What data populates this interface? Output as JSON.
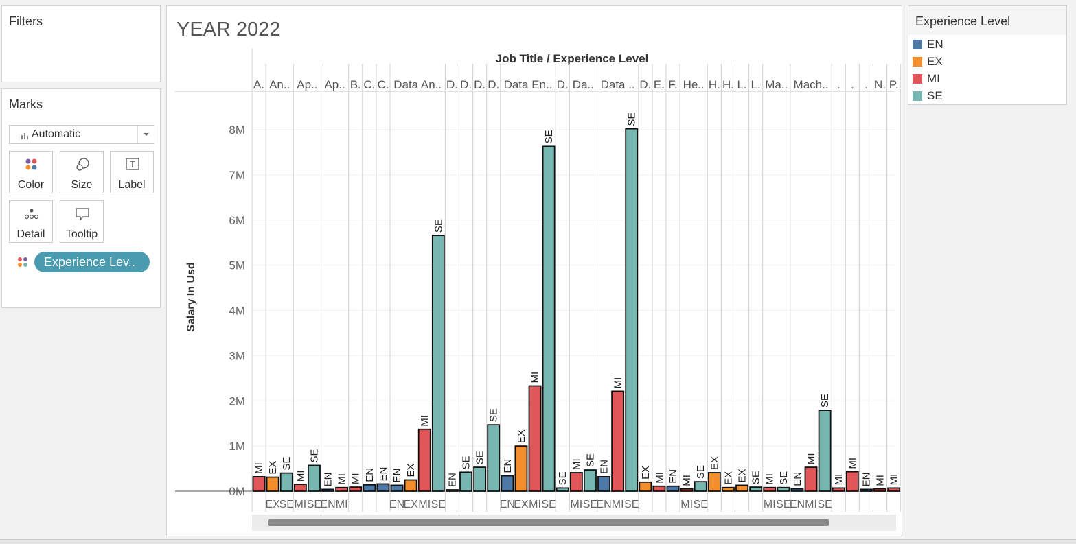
{
  "filters": {
    "title": "Filters"
  },
  "marks": {
    "title": "Marks",
    "mark_type": "Automatic",
    "buttons": {
      "color": "Color",
      "size": "Size",
      "label": "Label",
      "detail": "Detail",
      "tooltip": "Tooltip"
    },
    "pill": "Experience Lev.."
  },
  "legend": {
    "title": "Experience Level",
    "items": [
      {
        "label": "EN",
        "color": "#4e79a7"
      },
      {
        "label": "EX",
        "color": "#f28e2b"
      },
      {
        "label": "MI",
        "color": "#e15759"
      },
      {
        "label": "SE",
        "color": "#76b7b2"
      }
    ]
  },
  "chart_data": {
    "type": "bar",
    "title": "YEAR 2022",
    "header": "Job Title  /  Experience Level",
    "ylabel": "Salary In Usd",
    "ylim": [
      0,
      8800000
    ],
    "yticks": [
      {
        "v": 0,
        "label": "0M"
      },
      {
        "v": 1000000,
        "label": "1M"
      },
      {
        "v": 2000000,
        "label": "2M"
      },
      {
        "v": 3000000,
        "label": "3M"
      },
      {
        "v": 4000000,
        "label": "4M"
      },
      {
        "v": 5000000,
        "label": "5M"
      },
      {
        "v": 6000000,
        "label": "6M"
      },
      {
        "v": 7000000,
        "label": "7M"
      },
      {
        "v": 8000000,
        "label": "8M"
      }
    ],
    "colors": {
      "EN": "#4e79a7",
      "EX": "#f28e2b",
      "MI": "#e15759",
      "SE": "#76b7b2"
    },
    "groups": [
      {
        "title": "A.",
        "bars": [
          {
            "level": "MI",
            "value": 320000
          }
        ]
      },
      {
        "title": "An..",
        "bars": [
          {
            "level": "EX",
            "value": 310000
          },
          {
            "level": "SE",
            "value": 400000
          }
        ]
      },
      {
        "title": "Ap..",
        "bars": [
          {
            "level": "MI",
            "value": 150000
          },
          {
            "level": "SE",
            "value": 570000
          }
        ]
      },
      {
        "title": "Ap..",
        "bars": [
          {
            "level": "EN",
            "value": 40000
          },
          {
            "level": "MI",
            "value": 80000
          }
        ]
      },
      {
        "title": "B.",
        "bars": [
          {
            "level": "MI",
            "value": 90000
          }
        ]
      },
      {
        "title": "C.",
        "bars": [
          {
            "level": "EN",
            "value": 140000
          }
        ]
      },
      {
        "title": "C.",
        "bars": [
          {
            "level": "EN",
            "value": 160000
          }
        ]
      },
      {
        "title": "Data An..",
        "bars": [
          {
            "level": "EN",
            "value": 130000
          },
          {
            "level": "EX",
            "value": 250000
          },
          {
            "level": "MI",
            "value": 1370000
          },
          {
            "level": "SE",
            "value": 5660000
          }
        ]
      },
      {
        "title": "D.",
        "bars": [
          {
            "level": "EN",
            "value": 30000
          }
        ]
      },
      {
        "title": "D.",
        "bars": [
          {
            "level": "SE",
            "value": 420000
          }
        ]
      },
      {
        "title": "D.",
        "bars": [
          {
            "level": "SE",
            "value": 530000
          }
        ]
      },
      {
        "title": "D.",
        "bars": [
          {
            "level": "SE",
            "value": 1470000
          }
        ]
      },
      {
        "title": "Data En..",
        "bars": [
          {
            "level": "EN",
            "value": 340000
          },
          {
            "level": "EX",
            "value": 1000000
          },
          {
            "level": "MI",
            "value": 2330000
          },
          {
            "level": "SE",
            "value": 7630000
          }
        ]
      },
      {
        "title": "D.",
        "bars": [
          {
            "level": "SE",
            "value": 70000
          }
        ]
      },
      {
        "title": "Da..",
        "bars": [
          {
            "level": "MI",
            "value": 410000
          },
          {
            "level": "SE",
            "value": 470000
          }
        ]
      },
      {
        "title": "Data ..",
        "bars": [
          {
            "level": "EN",
            "value": 320000
          },
          {
            "level": "MI",
            "value": 2210000
          },
          {
            "level": "SE",
            "value": 8020000
          }
        ]
      },
      {
        "title": "D.",
        "bars": [
          {
            "level": "EX",
            "value": 200000
          }
        ]
      },
      {
        "title": "E.",
        "bars": [
          {
            "level": "MI",
            "value": 110000
          }
        ]
      },
      {
        "title": "F.",
        "bars": [
          {
            "level": "EN",
            "value": 110000
          }
        ]
      },
      {
        "title": "He..",
        "bars": [
          {
            "level": "MI",
            "value": 50000
          },
          {
            "level": "SE",
            "value": 210000
          }
        ]
      },
      {
        "title": "H.",
        "bars": [
          {
            "level": "EX",
            "value": 410000
          }
        ]
      },
      {
        "title": "H.",
        "bars": [
          {
            "level": "EX",
            "value": 80000
          }
        ]
      },
      {
        "title": "L.",
        "bars": [
          {
            "level": "EX",
            "value": 130000
          }
        ]
      },
      {
        "title": "L.",
        "bars": [
          {
            "level": "SE",
            "value": 90000
          }
        ]
      },
      {
        "title": "Ma..",
        "bars": [
          {
            "level": "MI",
            "value": 80000
          },
          {
            "level": "SE",
            "value": 80000
          }
        ]
      },
      {
        "title": "Mach..",
        "bars": [
          {
            "level": "EN",
            "value": 50000
          },
          {
            "level": "MI",
            "value": 530000
          },
          {
            "level": "SE",
            "value": 1790000
          }
        ]
      },
      {
        "title": ".",
        "bars": [
          {
            "level": "MI",
            "value": 70000
          }
        ]
      },
      {
        "title": ".",
        "bars": [
          {
            "level": "MI",
            "value": 430000
          }
        ]
      },
      {
        "title": ".",
        "bars": [
          {
            "level": "EN",
            "value": 40000
          }
        ]
      },
      {
        "title": "N.",
        "bars": [
          {
            "level": "MI",
            "value": 50000
          }
        ]
      },
      {
        "title": "P.",
        "bars": [
          {
            "level": "MI",
            "value": 70000
          }
        ]
      }
    ]
  }
}
